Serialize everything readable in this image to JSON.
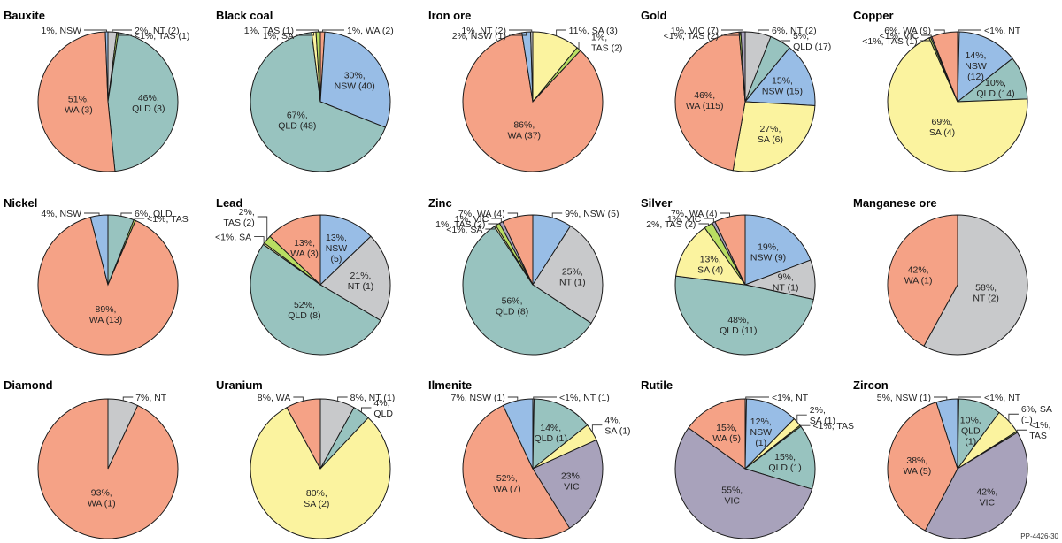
{
  "footer_code": "PP-4426-30",
  "colors": {
    "WA": "#f5a286",
    "QLD": "#98c3bf",
    "NSW": "#98bde6",
    "NT": "#c8c9cb",
    "SA": "#fbf39f",
    "TAS": "#b9de62",
    "VIC": "#a8a2bb"
  },
  "chart_data": [
    {
      "type": "pie",
      "title": "Bauxite",
      "slices": [
        {
          "state": "NT",
          "value": 2,
          "label": "2%, NT (2)",
          "pos": "outside"
        },
        {
          "state": "TAS",
          "value": 0.4,
          "label": "<1%, TAS (1)",
          "pos": "outside"
        },
        {
          "state": "QLD",
          "value": 46,
          "label": "46%,\nQLD (3)",
          "pos": "inside"
        },
        {
          "state": "WA",
          "value": 51,
          "label": "51%,\nWA (3)",
          "pos": "inside"
        },
        {
          "state": "NSW",
          "value": 0.6,
          "label": "1%, NSW",
          "pos": "outside"
        }
      ]
    },
    {
      "type": "pie",
      "title": "Black coal",
      "slices": [
        {
          "state": "WA",
          "value": 1,
          "label": "1%, WA (2)",
          "pos": "outside"
        },
        {
          "state": "NSW",
          "value": 30,
          "label": "30%,\nNSW (40)",
          "pos": "inside"
        },
        {
          "state": "QLD",
          "value": 67,
          "label": "67%,\nQLD (48)",
          "pos": "inside"
        },
        {
          "state": "SA",
          "value": 1,
          "label": "1%, SA",
          "pos": "outside"
        },
        {
          "state": "TAS",
          "value": 1,
          "label": "1%, TAS (1)",
          "pos": "outside"
        }
      ]
    },
    {
      "type": "pie",
      "title": "Iron ore",
      "slices": [
        {
          "state": "SA",
          "value": 11,
          "label": "11%, SA (3)",
          "pos": "outside"
        },
        {
          "state": "TAS",
          "value": 1,
          "label": "1%,\nTAS (2)",
          "pos": "outside"
        },
        {
          "state": "WA",
          "value": 86,
          "label": "86%,\nWA (37)",
          "pos": "inside"
        },
        {
          "state": "NSW",
          "value": 2,
          "label": "2%, NSW (1)",
          "pos": "outside"
        },
        {
          "state": "NT",
          "value": 0.5,
          "label": "1%, NT (2)",
          "pos": "outside"
        }
      ]
    },
    {
      "type": "pie",
      "title": "Gold",
      "slices": [
        {
          "state": "NT",
          "value": 6,
          "label": "6%, NT (2)",
          "pos": "outside"
        },
        {
          "state": "QLD",
          "value": 5,
          "label": "5%,\nQLD (17)",
          "pos": "outside"
        },
        {
          "state": "NSW",
          "value": 15,
          "label": "15%,\nNSW (15)",
          "pos": "inside"
        },
        {
          "state": "SA",
          "value": 27,
          "label": "27%,\nSA (6)",
          "pos": "inside"
        },
        {
          "state": "WA",
          "value": 46,
          "label": "46%,\nWA (115)",
          "pos": "inside"
        },
        {
          "state": "TAS",
          "value": 0.4,
          "label": "<1%, TAS (2)",
          "pos": "outside"
        },
        {
          "state": "VIC",
          "value": 1,
          "label": "1%, VIC (7)",
          "pos": "outside"
        }
      ]
    },
    {
      "type": "pie",
      "title": "Copper",
      "slices": [
        {
          "state": "NT",
          "value": 0.4,
          "label": "<1%, NT",
          "pos": "outside"
        },
        {
          "state": "NSW",
          "value": 14,
          "label": "14%,\nNSW\n(12)",
          "pos": "inside"
        },
        {
          "state": "QLD",
          "value": 10,
          "label": "10%,\nQLD (14)",
          "pos": "inside"
        },
        {
          "state": "SA",
          "value": 69,
          "label": "69%,\nSA (4)",
          "pos": "inside"
        },
        {
          "state": "TAS",
          "value": 0.4,
          "label": "<1%, TAS (1)",
          "pos": "outside"
        },
        {
          "state": "VIC",
          "value": 0.3,
          "label": "<1%, VIC",
          "pos": "outside"
        },
        {
          "state": "WA",
          "value": 6,
          "label": "6%, WA (9)",
          "pos": "outside"
        }
      ]
    },
    {
      "type": "pie",
      "title": "Nickel",
      "slices": [
        {
          "state": "QLD",
          "value": 6,
          "label": "6%, QLD",
          "pos": "outside"
        },
        {
          "state": "TAS",
          "value": 0.4,
          "label": "<1%, TAS",
          "pos": "outside"
        },
        {
          "state": "WA",
          "value": 89,
          "label": "89%,\nWA (13)",
          "pos": "inside"
        },
        {
          "state": "NSW",
          "value": 4,
          "label": "4%, NSW",
          "pos": "outside"
        }
      ]
    },
    {
      "type": "pie",
      "title": "Lead",
      "slices": [
        {
          "state": "NSW",
          "value": 13,
          "label": "13%,\nNSW\n(5)",
          "pos": "inside"
        },
        {
          "state": "NT",
          "value": 21,
          "label": "21%,\nNT (1)",
          "pos": "inside"
        },
        {
          "state": "QLD",
          "value": 52,
          "label": "52%,\nQLD (8)",
          "pos": "inside"
        },
        {
          "state": "SA",
          "value": 0.4,
          "label": "<1%, SA",
          "pos": "outside"
        },
        {
          "state": "TAS",
          "value": 2,
          "label": "2%,\nTAS (2)",
          "pos": "outside"
        },
        {
          "state": "WA",
          "value": 13,
          "label": "13%,\nWA (3)",
          "pos": "inside"
        }
      ]
    },
    {
      "type": "pie",
      "title": "Zinc",
      "slices": [
        {
          "state": "NSW",
          "value": 9,
          "label": "9%, NSW (5)",
          "pos": "outside"
        },
        {
          "state": "NT",
          "value": 25,
          "label": "25%,\nNT (1)",
          "pos": "inside"
        },
        {
          "state": "QLD",
          "value": 56,
          "label": "56%,\nQLD (8)",
          "pos": "inside"
        },
        {
          "state": "SA",
          "value": 0.4,
          "label": "<1%, SA",
          "pos": "outside"
        },
        {
          "state": "TAS",
          "value": 1,
          "label": "1%, TAS (2)",
          "pos": "outside"
        },
        {
          "state": "VIC",
          "value": 0.8,
          "label": "1%, VIC",
          "pos": "outside"
        },
        {
          "state": "WA",
          "value": 7,
          "label": "7%, WA (4)",
          "pos": "outside"
        }
      ]
    },
    {
      "type": "pie",
      "title": "Silver",
      "slices": [
        {
          "state": "NSW",
          "value": 19,
          "label": "19%,\nNSW (9)",
          "pos": "inside"
        },
        {
          "state": "NT",
          "value": 9,
          "label": "9%,\nNT (1)",
          "pos": "inside"
        },
        {
          "state": "QLD",
          "value": 48,
          "label": "48%,\nQLD (11)",
          "pos": "inside"
        },
        {
          "state": "SA",
          "value": 13,
          "label": "13%,\nSA (4)",
          "pos": "inside"
        },
        {
          "state": "TAS",
          "value": 2,
          "label": "2%, TAS (2)",
          "pos": "outside"
        },
        {
          "state": "VIC",
          "value": 0.7,
          "label": "1%, VIC",
          "pos": "outside"
        },
        {
          "state": "WA",
          "value": 7,
          "label": "7%, WA (4)",
          "pos": "outside"
        }
      ]
    },
    {
      "type": "pie",
      "title": "Manganese ore",
      "slices": [
        {
          "state": "NT",
          "value": 58,
          "label": "58%,\nNT (2)",
          "pos": "inside"
        },
        {
          "state": "WA",
          "value": 42,
          "label": "42%,\nWA (1)",
          "pos": "inside"
        }
      ]
    },
    {
      "type": "pie",
      "title": "Diamond",
      "slices": [
        {
          "state": "NT",
          "value": 7,
          "label": "7%, NT",
          "pos": "outside"
        },
        {
          "state": "WA",
          "value": 93,
          "label": "93%,\nWA (1)",
          "pos": "inside"
        }
      ]
    },
    {
      "type": "pie",
      "title": "Uranium",
      "slices": [
        {
          "state": "NT",
          "value": 8,
          "label": "8%, NT (1)",
          "pos": "outside"
        },
        {
          "state": "QLD",
          "value": 4,
          "label": "4%,\nQLD",
          "pos": "outside"
        },
        {
          "state": "SA",
          "value": 80,
          "label": "80%,\nSA (2)",
          "pos": "inside"
        },
        {
          "state": "WA",
          "value": 8,
          "label": "8%, WA",
          "pos": "outside"
        }
      ]
    },
    {
      "type": "pie",
      "title": "Ilmenite",
      "slices": [
        {
          "state": "NT",
          "value": 0.3,
          "label": "<1%, NT (1)",
          "pos": "outside"
        },
        {
          "state": "QLD",
          "value": 14,
          "label": "14%,\nQLD (1)",
          "pos": "inside"
        },
        {
          "state": "SA",
          "value": 4,
          "label": "4%,\nSA (1)",
          "pos": "outside"
        },
        {
          "state": "VIC",
          "value": 23,
          "label": "23%,\nVIC",
          "pos": "inside"
        },
        {
          "state": "WA",
          "value": 52,
          "label": "52%,\nWA (7)",
          "pos": "inside"
        },
        {
          "state": "NSW",
          "value": 7,
          "label": "7%, NSW (1)",
          "pos": "outside"
        }
      ]
    },
    {
      "type": "pie",
      "title": "Rutile",
      "slices": [
        {
          "state": "NT",
          "value": 0.3,
          "label": "<1%, NT",
          "pos": "outside"
        },
        {
          "state": "NSW",
          "value": 12,
          "label": "12%,\nNSW\n(1)",
          "pos": "inside"
        },
        {
          "state": "SA",
          "value": 2,
          "label": "2%,\nSA (1)",
          "pos": "outside"
        },
        {
          "state": "TAS",
          "value": 0.3,
          "label": "<1%, TAS",
          "pos": "outside"
        },
        {
          "state": "QLD",
          "value": 15,
          "label": "15%,\nQLD (1)",
          "pos": "inside"
        },
        {
          "state": "VIC",
          "value": 55,
          "label": "55%,\nVIC",
          "pos": "inside"
        },
        {
          "state": "WA",
          "value": 15,
          "label": "15%,\nWA (5)",
          "pos": "inside"
        }
      ]
    },
    {
      "type": "pie",
      "title": "Zircon",
      "slices": [
        {
          "state": "NT",
          "value": 0.3,
          "label": "<1%, NT",
          "pos": "outside"
        },
        {
          "state": "QLD",
          "value": 10,
          "label": "10%,\nQLD\n(1)",
          "pos": "inside"
        },
        {
          "state": "SA",
          "value": 6,
          "label": "6%, SA\n(1)",
          "pos": "outside"
        },
        {
          "state": "TAS",
          "value": 0.3,
          "label": "<1%,\nTAS",
          "pos": "outside"
        },
        {
          "state": "VIC",
          "value": 42,
          "label": "42%,\nVIC",
          "pos": "inside"
        },
        {
          "state": "WA",
          "value": 38,
          "label": "38%,\nWA (5)",
          "pos": "inside"
        },
        {
          "state": "NSW",
          "value": 5,
          "label": "5%, NSW (1)",
          "pos": "outside"
        }
      ]
    }
  ]
}
